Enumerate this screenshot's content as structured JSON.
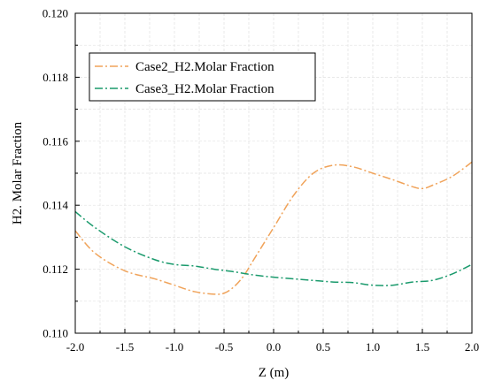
{
  "chart_data": {
    "type": "line",
    "xlabel": "Z (m)",
    "ylabel": "H2. Molar Fraction",
    "xlim": [
      -2.0,
      2.0
    ],
    "ylim": [
      0.11,
      0.12
    ],
    "x_ticks": [
      "-2.0",
      "-1.5",
      "-1.0",
      "-0.5",
      "0.0",
      "0.5",
      "1.0",
      "1.5",
      "2.0"
    ],
    "y_ticks": [
      "0.110",
      "0.112",
      "0.114",
      "0.116",
      "0.118",
      "0.120"
    ],
    "grid": true,
    "legend_position": "top-left",
    "series": [
      {
        "name": "Case2_H2.Molar Fraction",
        "color": "#f0a35a",
        "line_style": "dash-dot",
        "x": [
          -2.0,
          -1.8,
          -1.5,
          -1.2,
          -1.0,
          -0.8,
          -0.6,
          -0.5,
          -0.4,
          -0.3,
          -0.2,
          0.0,
          0.2,
          0.4,
          0.6,
          0.8,
          1.0,
          1.2,
          1.4,
          1.5,
          1.6,
          1.8,
          2.0
        ],
        "y": [
          0.1132,
          0.1125,
          0.11195,
          0.1117,
          0.1115,
          0.1113,
          0.11122,
          0.11125,
          0.11145,
          0.1118,
          0.1123,
          0.1133,
          0.1143,
          0.115,
          0.11525,
          0.1152,
          0.115,
          0.1148,
          0.11458,
          0.11452,
          0.11462,
          0.1149,
          0.11535
        ]
      },
      {
        "name": "Case3_H2.Molar Fraction",
        "color": "#1a9a6c",
        "line_style": "dash-dot",
        "x": [
          -2.0,
          -1.8,
          -1.5,
          -1.2,
          -1.0,
          -0.8,
          -0.6,
          -0.4,
          -0.2,
          0.0,
          0.2,
          0.4,
          0.6,
          0.8,
          1.0,
          1.2,
          1.4,
          1.6,
          1.8,
          2.0
        ],
        "y": [
          0.1138,
          0.1133,
          0.1127,
          0.1123,
          0.11215,
          0.1121,
          0.112,
          0.11192,
          0.11182,
          0.11175,
          0.1117,
          0.11165,
          0.1116,
          0.11158,
          0.1115,
          0.1115,
          0.1116,
          0.11165,
          0.11185,
          0.11215
        ]
      }
    ]
  }
}
